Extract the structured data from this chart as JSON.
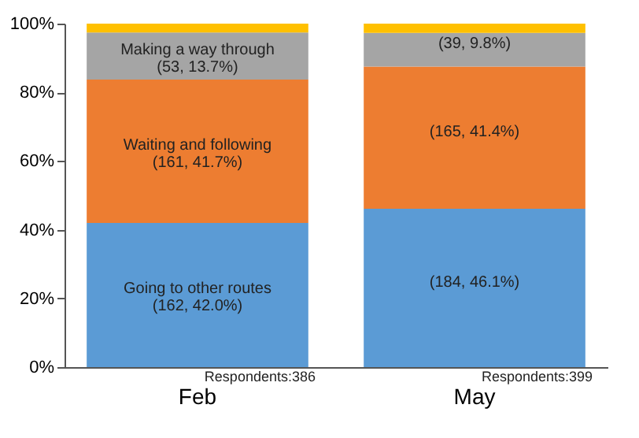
{
  "chart_data": {
    "type": "bar",
    "stacked": true,
    "categories": [
      "Feb",
      "May"
    ],
    "series": [
      {
        "name": "Going to other routes",
        "color": "#5b9bd5",
        "values": [
          42.0,
          46.1
        ],
        "value_labels": [
          "(162, 42.0%)",
          "(184, 46.1%)"
        ]
      },
      {
        "name": "Waiting and following",
        "color": "#ed7d31",
        "values": [
          41.7,
          41.4
        ],
        "value_labels": [
          "(161, 41.7%)",
          "(165, 41.4%)"
        ]
      },
      {
        "name": "Making a way through",
        "color": "#a5a5a5",
        "values": [
          13.7,
          9.8
        ],
        "value_labels": [
          "(53, 13.7%)",
          "(39, 9.8%)"
        ]
      },
      {
        "color": "#ffc000",
        "values": [
          2.6,
          2.7
        ]
      }
    ],
    "ylim": [
      0,
      100
    ],
    "yticks": [
      {
        "value": 0,
        "label": "0%"
      },
      {
        "value": 20,
        "label": "20%"
      },
      {
        "value": 40,
        "label": "40%"
      },
      {
        "value": 60,
        "label": "60%"
      },
      {
        "value": 80,
        "label": "80%"
      },
      {
        "value": 100,
        "label": "100%"
      }
    ],
    "grid": false,
    "annotations": [
      "Respondents:386",
      "Respondents:399"
    ]
  }
}
